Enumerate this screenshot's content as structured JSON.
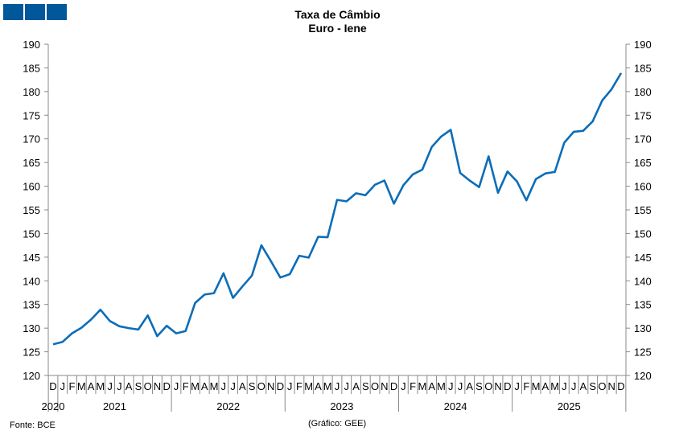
{
  "header": {
    "logo_color": "#00579a"
  },
  "chart_data": {
    "type": "line",
    "title": "Taxa de Câmbio",
    "subtitle": "Euro - Iene",
    "source": "Fonte: BCE",
    "credit": "(Gráfico: GEE)",
    "ylim": [
      120,
      190
    ],
    "yticks": [
      120,
      125,
      130,
      135,
      140,
      145,
      150,
      155,
      160,
      165,
      170,
      175,
      180,
      185,
      190
    ],
    "y_axis_both_sides": true,
    "grid": false,
    "line_color": "#0c6db8",
    "month_labels": [
      "D",
      "J",
      "F",
      "M",
      "A",
      "M",
      "J",
      "J",
      "A",
      "S",
      "O",
      "N",
      "D",
      "J",
      "F",
      "M",
      "A",
      "M",
      "J",
      "J",
      "A",
      "S",
      "O",
      "N",
      "D",
      "J",
      "F",
      "M",
      "A",
      "M",
      "J",
      "J",
      "A",
      "S",
      "O",
      "N",
      "D",
      "J",
      "F",
      "M",
      "A",
      "M",
      "J",
      "J",
      "A",
      "S",
      "O",
      "N",
      "D",
      "J",
      "F",
      "M",
      "A",
      "M",
      "J",
      "J",
      "A",
      "S",
      "O",
      "N",
      "D"
    ],
    "years": [
      {
        "label": "2020",
        "start": 0,
        "end": 0
      },
      {
        "label": "2021",
        "start": 1,
        "end": 12
      },
      {
        "label": "2022",
        "start": 13,
        "end": 24
      },
      {
        "label": "2023",
        "start": 25,
        "end": 36
      },
      {
        "label": "2024",
        "start": 37,
        "end": 48
      },
      {
        "label": "2025",
        "start": 49,
        "end": 60
      }
    ],
    "series": [
      {
        "values": [
          126.6,
          127.1,
          128.9,
          130.1,
          131.8,
          133.9,
          131.5,
          130.4,
          130.0,
          129.7,
          132.7,
          128.3,
          130.5,
          128.9,
          129.4,
          135.3,
          137.1,
          137.4,
          141.6,
          136.4,
          138.8,
          141.1,
          147.5,
          144.2,
          140.7,
          141.4,
          145.3,
          144.9,
          149.3,
          149.2,
          157.1,
          156.8,
          158.5,
          158.1,
          160.3,
          161.2,
          156.3,
          160.2,
          162.5,
          163.5,
          168.3,
          170.5,
          171.9,
          162.8,
          161.2,
          159.8,
          166.3,
          158.6,
          163.1,
          161.0,
          157.0,
          161.5,
          162.7,
          163.0,
          169.2,
          171.5,
          171.7,
          173.7,
          178.1,
          180.5,
          183.9
        ]
      }
    ]
  }
}
